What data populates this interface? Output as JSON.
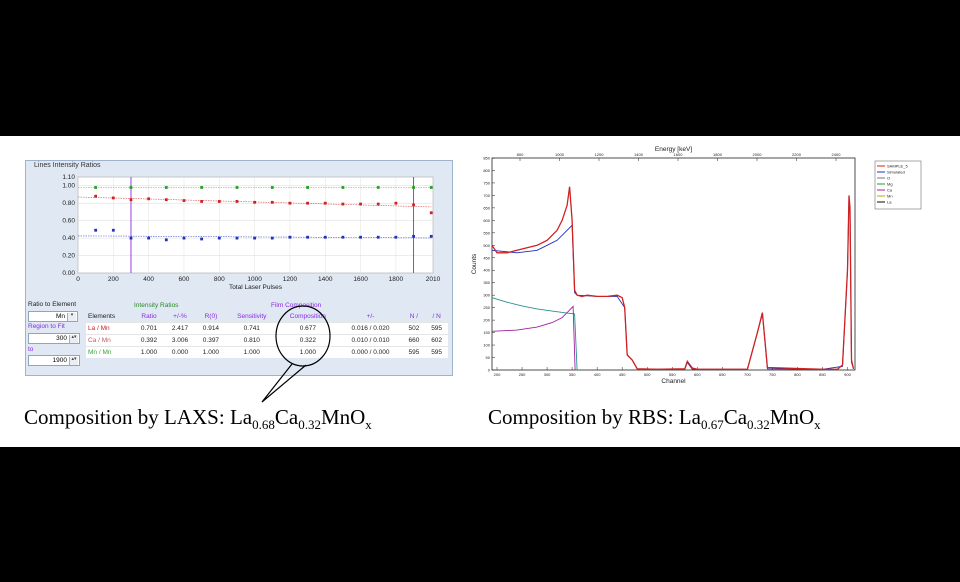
{
  "laxs_panel": {
    "title": "Lines Intensity Ratios",
    "ratio_to_element_label": "Ratio to Element",
    "ratio_to_element_value": "Mn",
    "region_label": "Region to Fit",
    "region_from": "300",
    "region_to_label": "to",
    "region_to": "1900",
    "group_intensity": "Intensity Ratios",
    "group_film": "Film Composition",
    "columns": [
      "Elements",
      "Ratio",
      "+/-%",
      "R(0)",
      "Sensitivity",
      "Composition",
      "+/-",
      "N /",
      "/ N"
    ],
    "rows": [
      {
        "element": "La / Mn",
        "ratio": "0.701",
        "pm_pct": "2.417",
        "r0": "0.914",
        "sensitivity": "0.741",
        "composition": "0.677",
        "pm": "0.016 / 0.020",
        "n1": "502",
        "n2": "595"
      },
      {
        "element": "Ca / Mn",
        "ratio": "0.392",
        "pm_pct": "3.006",
        "r0": "0.397",
        "sensitivity": "0.810",
        "composition": "0.322",
        "pm": "0.010 / 0.010",
        "n1": "660",
        "n2": "602"
      },
      {
        "element": "Mn / Mn",
        "ratio": "1.000",
        "pm_pct": "0.000",
        "r0": "1.000",
        "sensitivity": "1.000",
        "composition": "1.000",
        "pm": "0.000 / 0.000",
        "n1": "595",
        "n2": "595"
      }
    ]
  },
  "captions": {
    "laxs_prefix": "Composition by LAXS:",
    "rbs_prefix": "Composition by RBS:",
    "laxs_formula": [
      {
        "t": "La",
        "sub": "0.68"
      },
      {
        "t": "Ca",
        "sub": "0.32"
      },
      {
        "t": "MnO",
        "sub": "x"
      }
    ],
    "rbs_formula": [
      {
        "t": "La",
        "sub": "0.67"
      },
      {
        "t": "Ca",
        "sub": "0.32"
      },
      {
        "t": "MnO",
        "sub": "x"
      }
    ]
  },
  "chart_data": [
    {
      "type": "scatter",
      "xlabel": "Total Laser Pulses",
      "xlim": [
        0,
        2010
      ],
      "ylim": [
        0,
        1.1
      ],
      "xticks": [
        0,
        200,
        400,
        600,
        800,
        1000,
        1200,
        1400,
        1600,
        1800,
        2010
      ],
      "yticks": [
        0.0,
        0.2,
        0.4,
        0.6,
        0.8,
        1.0,
        1.1
      ],
      "ytick_labels": [
        "0.00",
        "0.20",
        "0.40",
        "0.60",
        "0.80",
        "1.00",
        "1.10"
      ],
      "fit_region_lines": [
        300,
        1900
      ],
      "series": [
        {
          "color": "#22a022",
          "x": [
            100,
            300,
            500,
            700,
            900,
            1100,
            1300,
            1500,
            1700,
            1900,
            2000
          ],
          "y": [
            0.98,
            0.98,
            0.98,
            0.98,
            0.98,
            0.98,
            0.98,
            0.98,
            0.98,
            0.98,
            0.98
          ]
        },
        {
          "color": "#d02020",
          "x": [
            100,
            200,
            300,
            400,
            500,
            600,
            700,
            800,
            900,
            1000,
            1100,
            1200,
            1300,
            1400,
            1500,
            1600,
            1700,
            1800,
            1900,
            2000
          ],
          "y": [
            0.88,
            0.86,
            0.84,
            0.85,
            0.84,
            0.83,
            0.82,
            0.82,
            0.82,
            0.81,
            0.81,
            0.8,
            0.8,
            0.8,
            0.79,
            0.79,
            0.79,
            0.8,
            0.78,
            0.69
          ]
        },
        {
          "color": "#2030c0",
          "x": [
            100,
            200,
            300,
            400,
            500,
            600,
            700,
            800,
            900,
            1000,
            1100,
            1200,
            1300,
            1400,
            1500,
            1600,
            1700,
            1800,
            1900,
            2000
          ],
          "y": [
            0.49,
            0.49,
            0.4,
            0.4,
            0.38,
            0.4,
            0.39,
            0.4,
            0.4,
            0.4,
            0.4,
            0.41,
            0.41,
            0.41,
            0.41,
            0.41,
            0.41,
            0.41,
            0.42,
            0.42
          ]
        }
      ]
    },
    {
      "type": "line",
      "xlabel": "Channel",
      "ylabel": "Counts",
      "top_axis_label": "Energy [keV]",
      "xlim": [
        190,
        915
      ],
      "ylim": [
        0,
        850
      ],
      "xticks": [
        200,
        250,
        300,
        350,
        400,
        450,
        500,
        550,
        600,
        650,
        700,
        750,
        800,
        850,
        900
      ],
      "yticks": [
        0,
        50,
        100,
        150,
        200,
        250,
        300,
        350,
        400,
        450,
        500,
        550,
        600,
        650,
        700,
        750,
        800,
        850
      ],
      "top_ticks": [
        800,
        1000,
        1200,
        1400,
        1600,
        1800,
        2000,
        2200,
        2400
      ],
      "legend": [
        "SAMPLE_5",
        "Simulated",
        "O",
        "Mg",
        "Ca",
        "Mn",
        "La"
      ],
      "legend_colors": [
        "#d02020",
        "#2030c0",
        "#777777",
        "#22a022",
        "#a020a0",
        "#c8a000",
        "#0a0a0a"
      ],
      "series": [
        {
          "name": "SAMPLE_5",
          "color": "#d02020",
          "x": [
            190,
            200,
            220,
            240,
            260,
            280,
            300,
            320,
            330,
            340,
            345,
            350,
            355,
            360,
            370,
            380,
            400,
            420,
            440,
            450,
            455,
            460,
            470,
            480,
            520,
            575,
            580,
            590,
            600,
            650,
            700,
            720,
            730,
            740,
            850,
            870,
            880,
            890,
            900,
            903,
            905,
            908,
            912
          ],
          "y": [
            500,
            470,
            470,
            480,
            490,
            500,
            520,
            560,
            600,
            660,
            735,
            600,
            320,
            300,
            295,
            300,
            295,
            295,
            300,
            290,
            250,
            60,
            40,
            5,
            3,
            5,
            35,
            8,
            3,
            3,
            3,
            150,
            230,
            10,
            3,
            3,
            3,
            20,
            400,
            700,
            650,
            40,
            5
          ]
        },
        {
          "name": "Simulated",
          "color": "#2030c0",
          "x": [
            190,
            240,
            280,
            300,
            320,
            340,
            350,
            355,
            360,
            400,
            440,
            455,
            460,
            470,
            480,
            520,
            575,
            580,
            590,
            700,
            720,
            730,
            740,
            850,
            890,
            900,
            903,
            905,
            908,
            912
          ],
          "y": [
            480,
            470,
            480,
            500,
            520,
            560,
            580,
            310,
            300,
            295,
            295,
            250,
            60,
            40,
            5,
            3,
            3,
            30,
            3,
            3,
            150,
            225,
            5,
            3,
            15,
            400,
            690,
            640,
            30,
            5
          ]
        },
        {
          "name": "O",
          "color": "#2a9090",
          "x": [
            190,
            220,
            250,
            280,
            310,
            340,
            355,
            360
          ],
          "y": [
            290,
            272,
            257,
            245,
            236,
            228,
            225,
            0
          ]
        },
        {
          "name": "Ca",
          "color": "#a020a0",
          "x": [
            190,
            240,
            280,
            310,
            330,
            345,
            352,
            356
          ],
          "y": [
            155,
            160,
            172,
            190,
            210,
            240,
            255,
            0
          ]
        }
      ]
    }
  ]
}
